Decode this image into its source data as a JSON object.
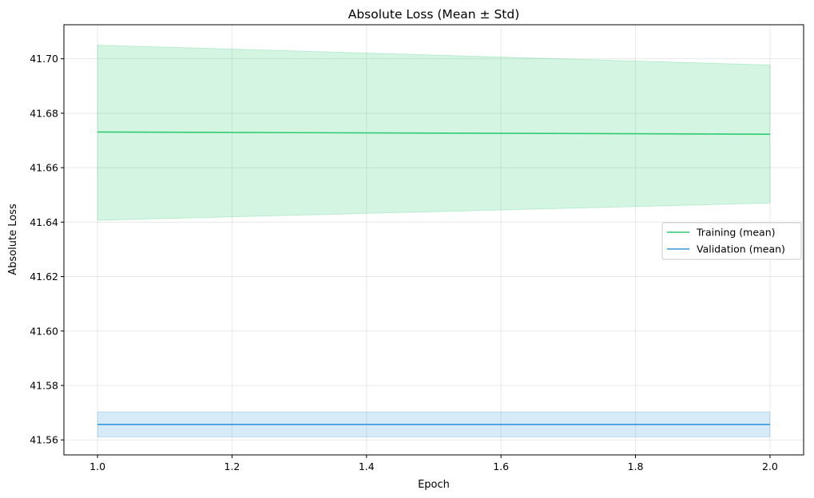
{
  "chart_data": {
    "type": "line",
    "title": "Absolute Loss (Mean ± Std)",
    "xlabel": "Epoch",
    "ylabel": "Absolute Loss",
    "xlim": [
      0.95,
      2.05
    ],
    "ylim": [
      41.5545,
      41.7125
    ],
    "xticks": [
      1.0,
      1.2,
      1.4,
      1.6,
      1.8,
      2.0
    ],
    "xtick_labels": [
      "1.0",
      "1.2",
      "1.4",
      "1.6",
      "1.8",
      "2.0"
    ],
    "yticks": [
      41.56,
      41.58,
      41.6,
      41.62,
      41.64,
      41.66,
      41.68,
      41.7
    ],
    "ytick_labels": [
      "41.56",
      "41.58",
      "41.60",
      "41.62",
      "41.64",
      "41.66",
      "41.68",
      "41.70"
    ],
    "grid": true,
    "legend_position": "center-right",
    "x": [
      1.0,
      2.0
    ],
    "series": [
      {
        "name": "Training (mean)",
        "color": "#2ecc71",
        "values": [
          41.6731,
          41.6723
        ],
        "std_lower": [
          41.6407,
          41.647
        ],
        "std_upper": [
          41.705,
          41.6977
        ]
      },
      {
        "name": "Validation (mean)",
        "color": "#3498db",
        "values": [
          41.5657,
          41.5657
        ],
        "std_lower": [
          41.5611,
          41.5611
        ],
        "std_upper": [
          41.5703,
          41.5703
        ]
      }
    ]
  }
}
